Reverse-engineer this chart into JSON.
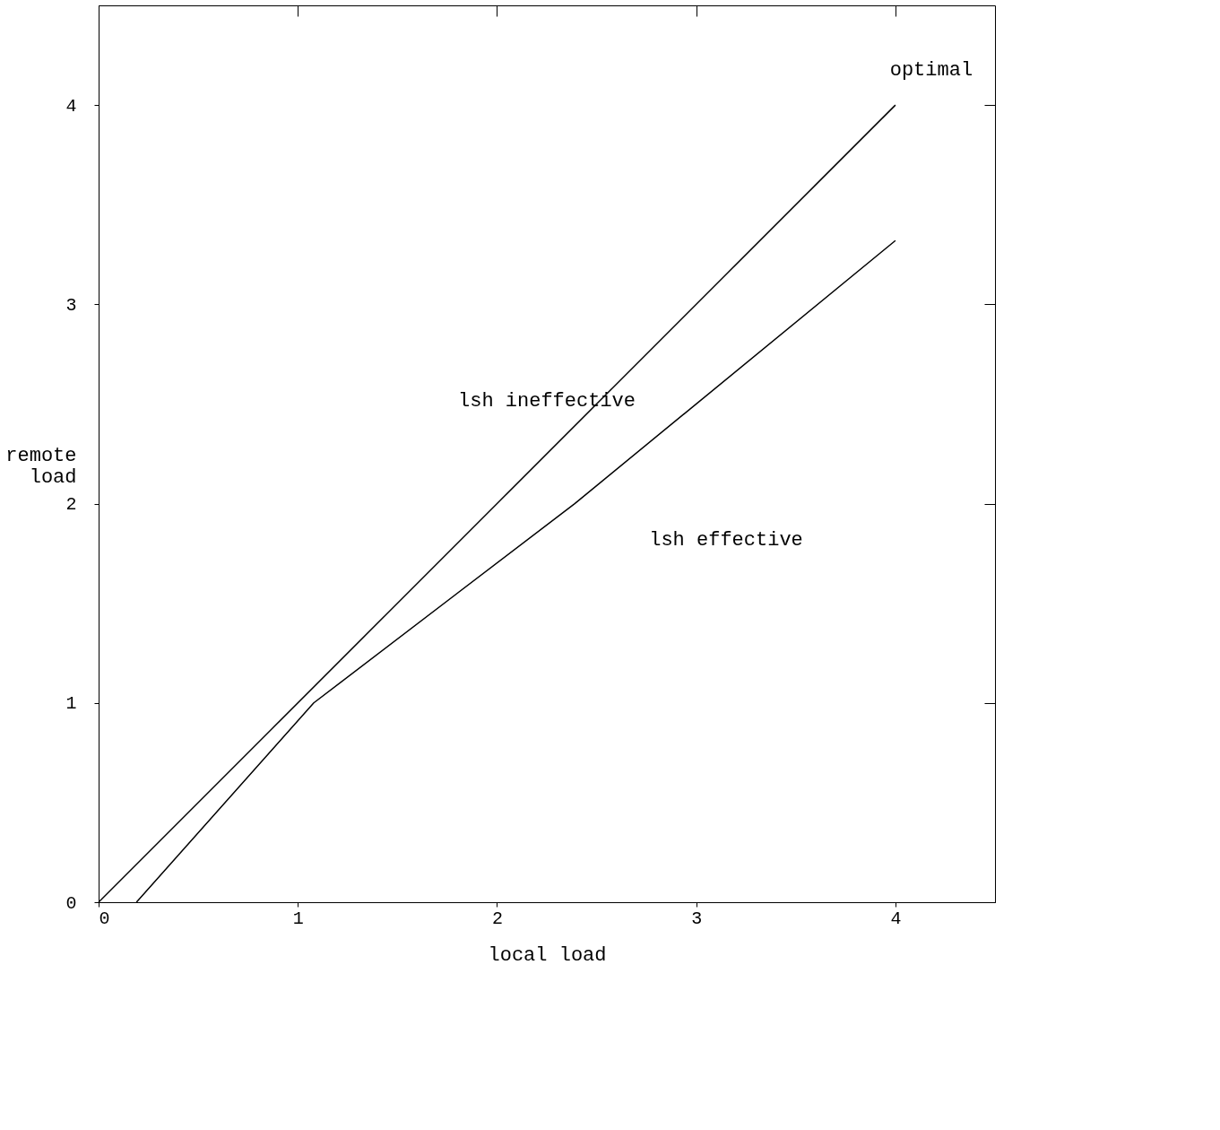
{
  "chart_data": {
    "type": "line",
    "xlabel": "local load",
    "ylabel": "remote load",
    "xlim": [
      0,
      4.5
    ],
    "ylim": [
      0,
      4.5
    ],
    "xticks": [
      0,
      1,
      2,
      3,
      4
    ],
    "yticks": [
      0,
      1,
      2,
      3,
      4
    ],
    "grid": false,
    "line_style": "solid",
    "series": [
      {
        "name": "optimal",
        "color": "#000000",
        "x": [
          0,
          4
        ],
        "values": [
          0,
          4
        ]
      },
      {
        "color": "#000000",
        "x": [
          0.19,
          1.08,
          2.39,
          4.0
        ],
        "values": [
          0,
          1.0,
          2.0,
          3.32
        ]
      }
    ],
    "annotations": [
      "lsh ineffective",
      "lsh effective"
    ]
  }
}
